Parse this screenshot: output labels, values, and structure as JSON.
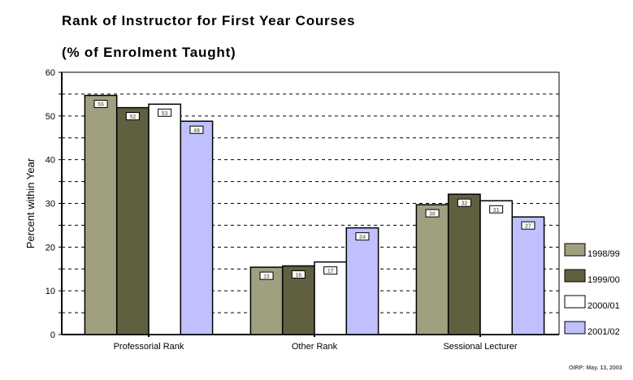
{
  "chart_data": {
    "type": "bar",
    "title": "Rank of Instructor for First Year Courses",
    "subtitle": "(% of Enrolment Taught)",
    "ylabel": "Percent within Year",
    "xlabel": "",
    "ylim": [
      0,
      60
    ],
    "yticks": [
      "0",
      "10",
      "20",
      "30",
      "40",
      "50",
      "60"
    ],
    "grid": true,
    "legend_position": "right",
    "categories": [
      "Professorial Rank",
      "Other Rank",
      "Sessional Lecturer"
    ],
    "series": [
      {
        "name": "1998/99",
        "color": "#a0a080",
        "values": [
          54.7,
          15.4,
          29.7
        ],
        "labels": [
          "55",
          "15",
          "30"
        ]
      },
      {
        "name": "1999/00",
        "color": "#606040",
        "values": [
          51.9,
          15.7,
          32.1
        ],
        "labels": [
          "52",
          "16",
          "32"
        ]
      },
      {
        "name": "2000/01",
        "color": "#ffffff",
        "values": [
          52.7,
          16.6,
          30.6
        ],
        "labels": [
          "53",
          "17",
          "31"
        ]
      },
      {
        "name": "2001/02",
        "color": "#c0c0ff",
        "values": [
          48.8,
          24.4,
          26.9
        ],
        "labels": [
          "49",
          "24",
          "27"
        ]
      }
    ]
  },
  "footer": "OIRP: May. 13, 2003"
}
